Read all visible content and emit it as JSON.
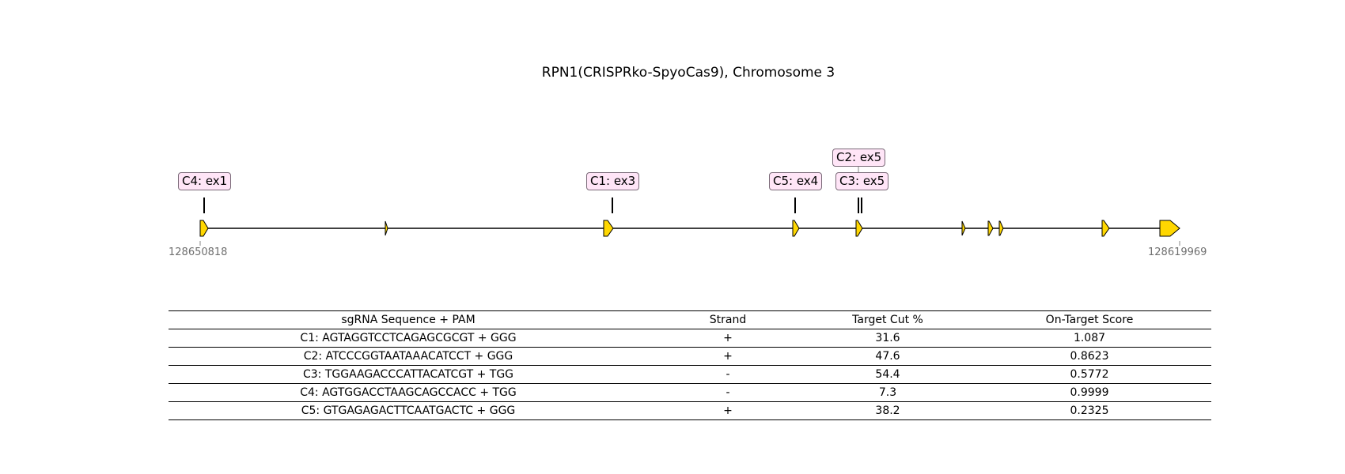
{
  "title": "RPN1(CRISPRko-SpyoCas9), Chromosome 3",
  "coordinates": {
    "start": "128650818",
    "end": "128619969"
  },
  "exon_color": "#ffd700",
  "label_color": "#ffe5f7",
  "guides": [
    {
      "label": "C4: ex1"
    },
    {
      "label": "C1: ex3"
    },
    {
      "label": "C5: ex4"
    },
    {
      "label": "C2: ex5"
    },
    {
      "label": "C3: ex5"
    }
  ],
  "table": {
    "headers": [
      "sgRNA Sequence + PAM",
      "Strand",
      "Target Cut %",
      "On-Target Score"
    ],
    "rows": [
      [
        "C1: AGTAGGTCCTCAGAGCGCGT + GGG",
        "+",
        "31.6",
        "1.087"
      ],
      [
        "C2: ATCCCGGTAATAAACATCCT + GGG",
        "+",
        "47.6",
        "0.8623"
      ],
      [
        "C3: TGGAAGACCCATTACATCGT + TGG",
        "-",
        "54.4",
        "0.5772"
      ],
      [
        "C4: AGTGGACCTAAGCAGCCACC + TGG",
        "-",
        "7.3",
        "0.9999"
      ],
      [
        "C5: GTGAGAGACTTCAATGACTC + GGG",
        "+",
        "38.2",
        "0.2325"
      ]
    ]
  }
}
